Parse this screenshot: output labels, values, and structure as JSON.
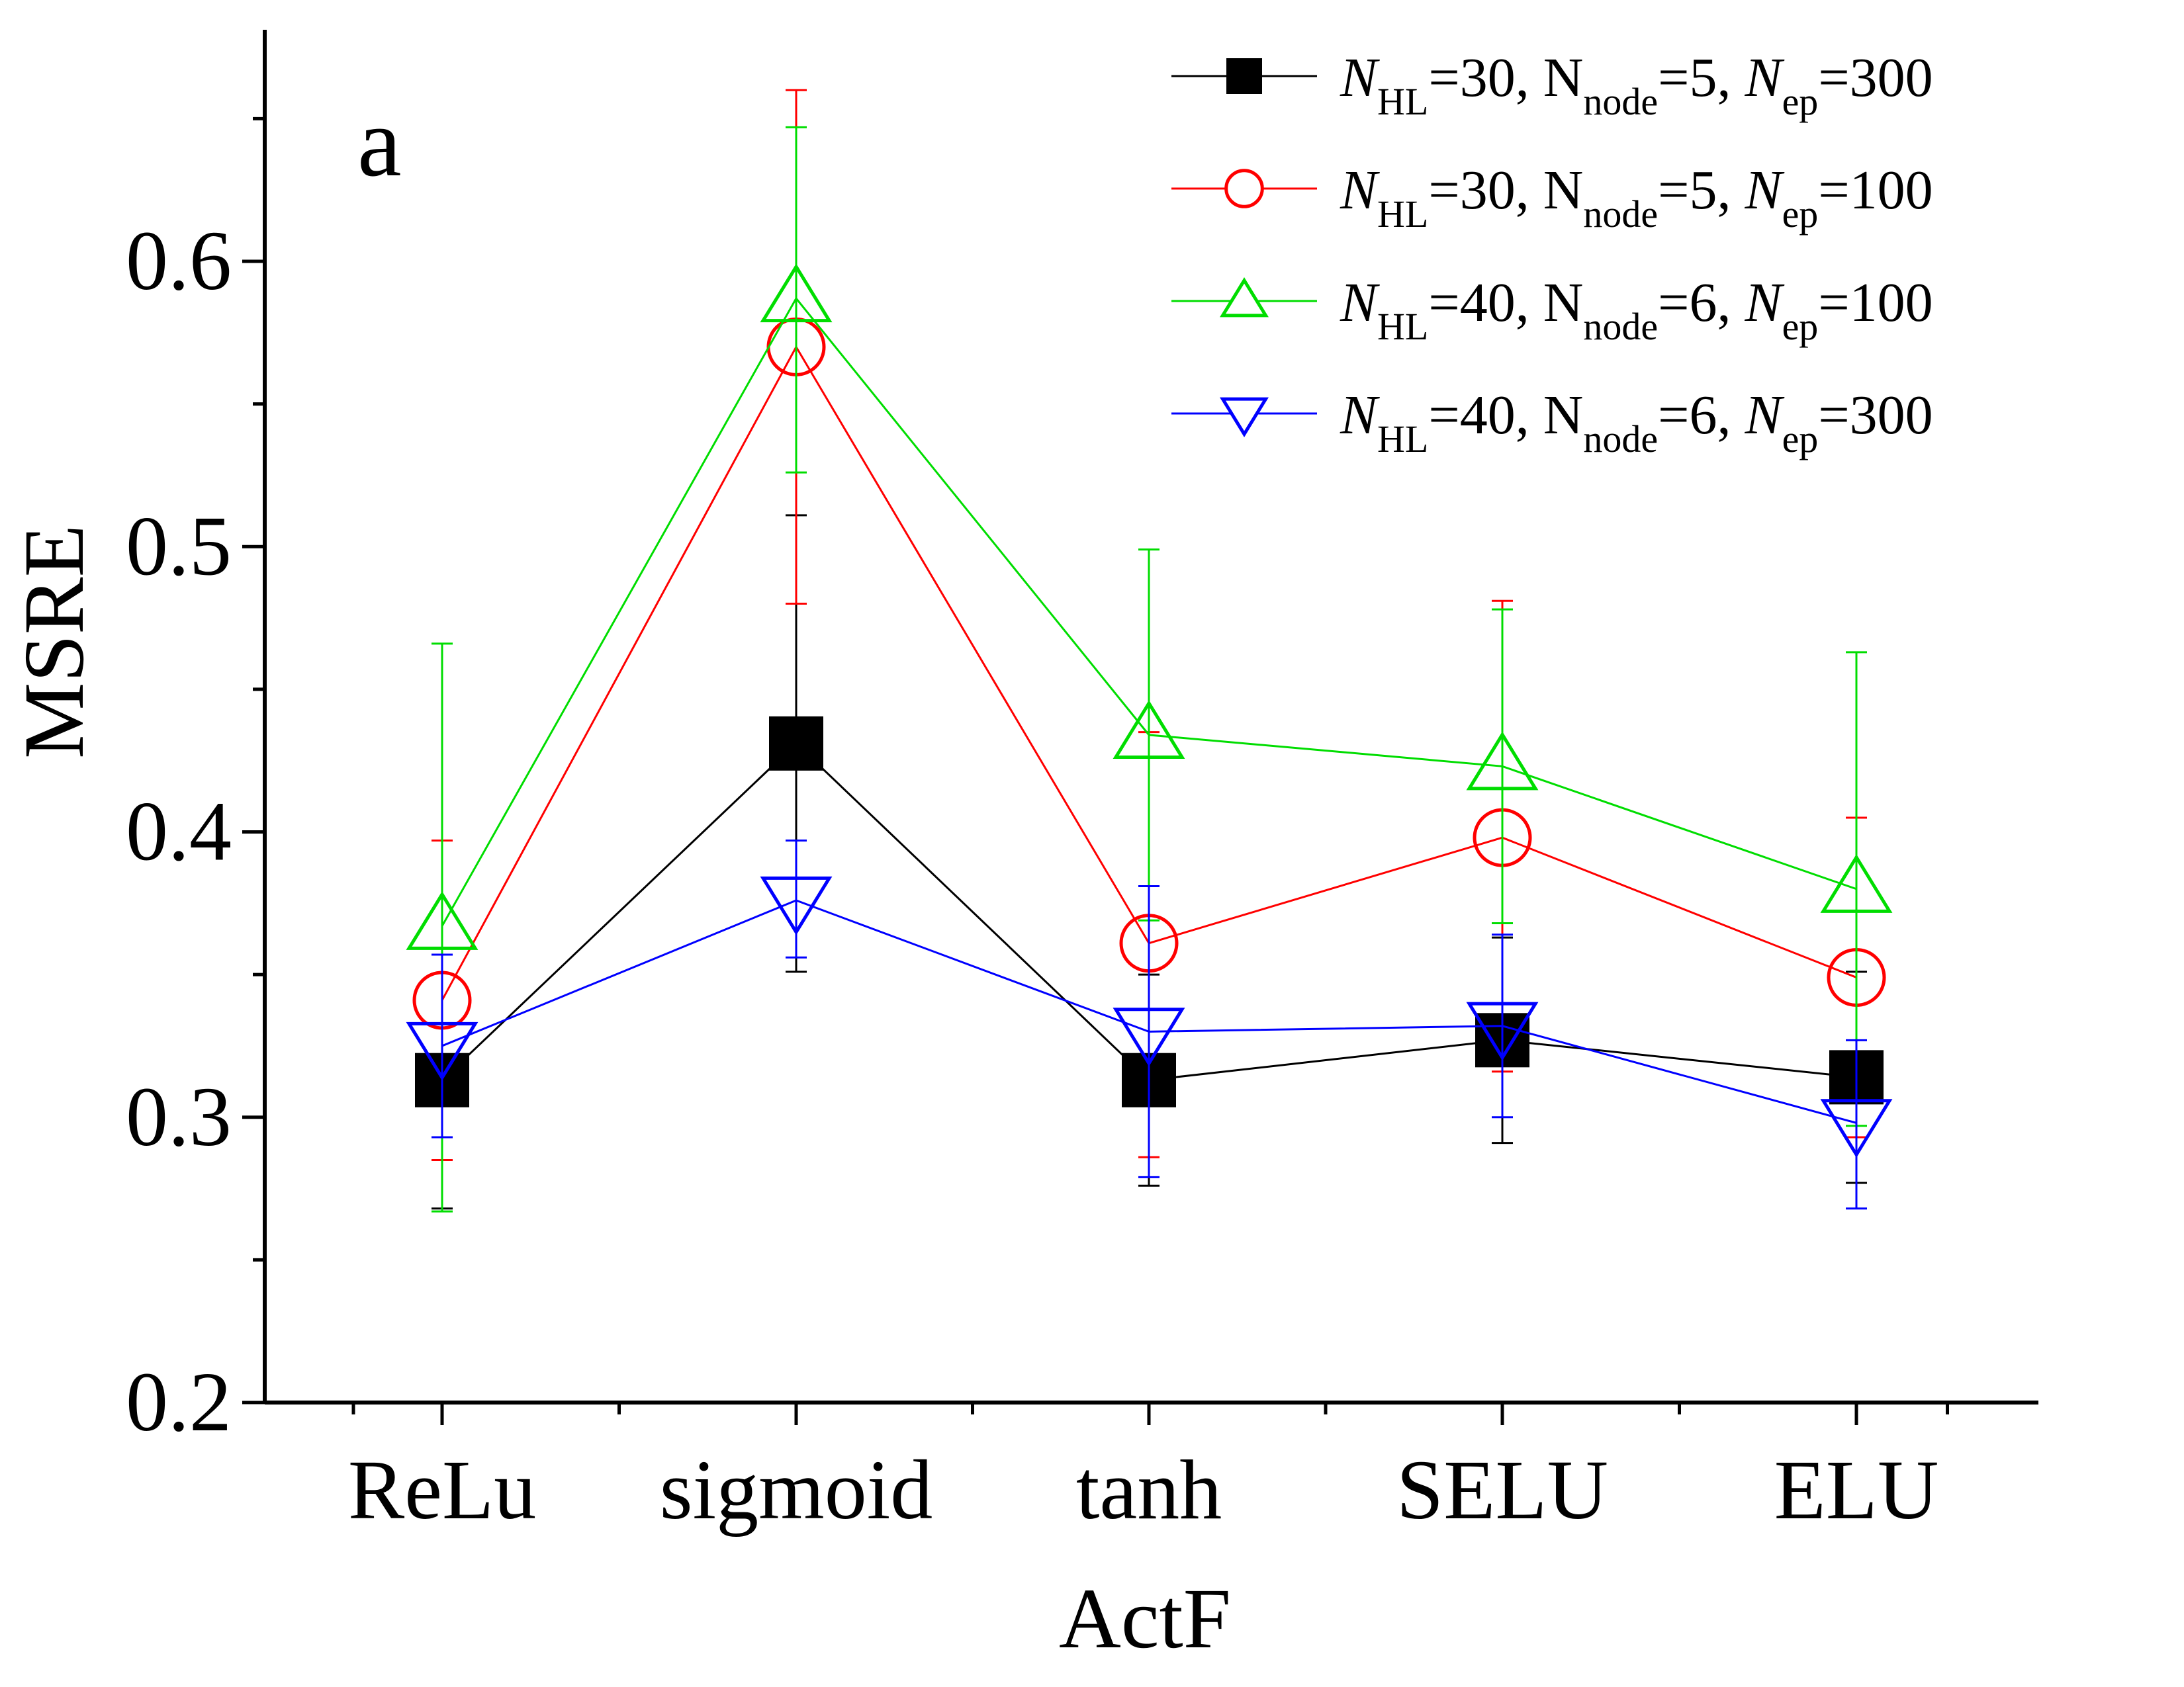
{
  "chart_data": {
    "type": "line",
    "panel_label": "a",
    "xlabel": "ActF",
    "ylabel": "MSRE",
    "categories": [
      "ReLu",
      "sigmoid",
      "tanh",
      "SELU",
      "ELU"
    ],
    "ylim": [
      0.2,
      0.65
    ],
    "yticks": [
      "0.2",
      "0.3",
      "0.4",
      "0.5",
      "0.6"
    ],
    "legend_position": "top-right",
    "series": [
      {
        "name": "N_HL=30, N_node=5, N_ep=300",
        "legend": {
          "n_hl": "30",
          "n_node": "5",
          "n_ep": "300"
        },
        "color": "#000000",
        "marker": "filled-square",
        "values": [
          0.313,
          0.431,
          0.313,
          0.327,
          0.314
        ],
        "err_low": [
          0.268,
          0.351,
          0.276,
          0.291,
          0.277
        ],
        "err_high": [
          0.357,
          0.511,
          0.35,
          0.363,
          0.351
        ]
      },
      {
        "name": "N_HL=30, N_node=5, N_ep=100",
        "legend": {
          "n_hl": "30",
          "n_node": "5",
          "n_ep": "100"
        },
        "color": "#ff0000",
        "marker": "open-circle",
        "values": [
          0.341,
          0.57,
          0.361,
          0.398,
          0.349
        ],
        "err_low": [
          0.285,
          0.48,
          0.286,
          0.316,
          0.293
        ],
        "err_high": [
          0.397,
          0.66,
          0.435,
          0.481,
          0.405
        ]
      },
      {
        "name": "N_HL=40, N_node=6, N_ep=100",
        "legend": {
          "n_hl": "40",
          "n_node": "6",
          "n_ep": "100"
        },
        "color": "#00dd00",
        "marker": "open-triangle-up",
        "values": [
          0.367,
          0.587,
          0.434,
          0.423,
          0.38
        ],
        "err_low": [
          0.267,
          0.526,
          0.369,
          0.368,
          0.297
        ],
        "err_high": [
          0.466,
          0.647,
          0.499,
          0.478,
          0.463
        ]
      },
      {
        "name": "N_HL=40, N_node=6, N_ep=300",
        "legend": {
          "n_hl": "40",
          "n_node": "6",
          "n_ep": "300"
        },
        "color": "#0000ff",
        "marker": "open-triangle-down",
        "values": [
          0.325,
          0.376,
          0.33,
          0.332,
          0.298
        ],
        "err_low": [
          0.293,
          0.356,
          0.279,
          0.3,
          0.268
        ],
        "err_high": [
          0.357,
          0.397,
          0.381,
          0.364,
          0.327
        ]
      }
    ]
  }
}
